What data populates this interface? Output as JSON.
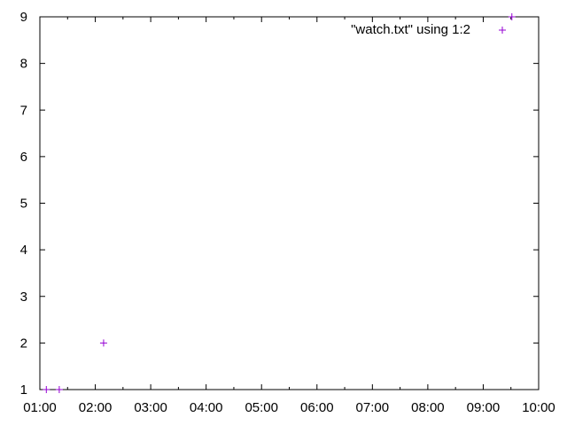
{
  "chart_data": {
    "type": "scatter",
    "title": "",
    "xlabel": "",
    "ylabel": "",
    "xlim": [
      "01:00",
      "10:00"
    ],
    "ylim": [
      1,
      9
    ],
    "x_ticks": [
      "01:00",
      "02:00",
      "03:00",
      "04:00",
      "05:00",
      "06:00",
      "07:00",
      "08:00",
      "09:00",
      "10:00"
    ],
    "y_ticks": [
      "1",
      "2",
      "3",
      "4",
      "5",
      "6",
      "7",
      "8",
      "9"
    ],
    "grid": false,
    "legend_position": "top-right",
    "series": [
      {
        "name": "\"watch.txt\" using 1:2",
        "color": "#9400d3",
        "marker": "plus",
        "points": [
          {
            "x": "01:07",
            "y": 1
          },
          {
            "x": "01:21",
            "y": 1
          },
          {
            "x": "02:09",
            "y": 2
          },
          {
            "x": "09:31",
            "y": 9
          }
        ]
      }
    ]
  }
}
